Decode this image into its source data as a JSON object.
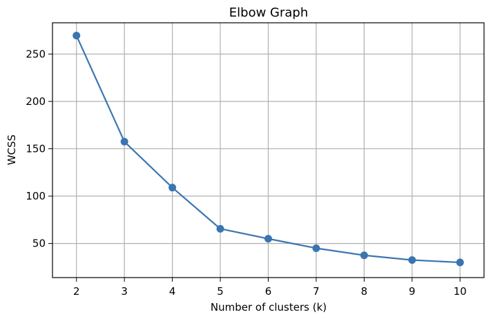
{
  "chart_data": {
    "type": "line",
    "title": "Elbow Graph",
    "xlabel": "Number of clusters (k)",
    "ylabel": "WCSS",
    "x": [
      2,
      3,
      4,
      5,
      6,
      7,
      8,
      9,
      10
    ],
    "series": [
      {
        "values": [
          269.5,
          157.5,
          109,
          65.5,
          55,
          45,
          37.5,
          32.5,
          30
        ],
        "marker": "circle",
        "color": "#3a75b0"
      }
    ],
    "xlim": [
      1.5,
      10.5
    ],
    "ylim": [
      14,
      283
    ],
    "x_ticks": [
      "2",
      "3",
      "4",
      "5",
      "6",
      "7",
      "8",
      "9",
      "10"
    ],
    "y_ticks": [
      "50",
      "100",
      "150",
      "200",
      "250"
    ],
    "grid": true,
    "legend": "none"
  }
}
